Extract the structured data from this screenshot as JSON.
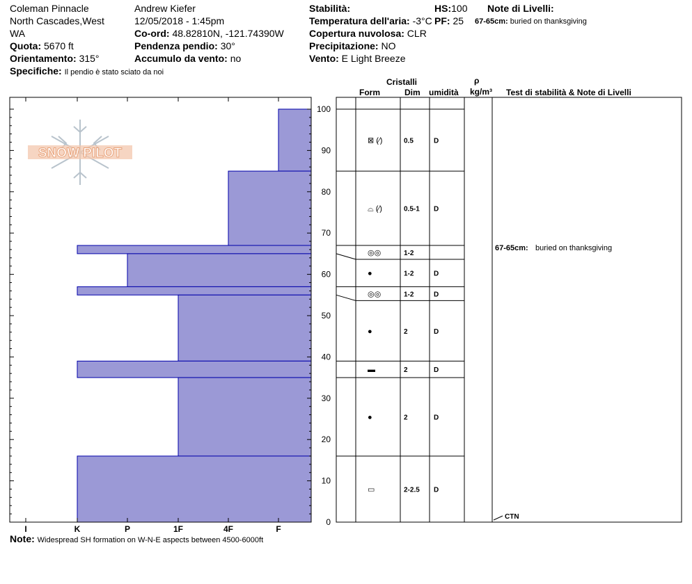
{
  "header": {
    "location": "Coleman Pinnacle",
    "region": "North Cascades,West",
    "state": "WA",
    "observer": "Andrew Kiefer",
    "datetime": "12/05/2018 - 1:45pm",
    "coord_label": "Co-ord:",
    "coord_value": "48.82810N, -121.74390W",
    "slope_label": "Pendenza pendio:",
    "slope_value": "30°",
    "elev_label": "Quota:",
    "elev_value": "5670 ft",
    "aspect_label": "Orientamento:",
    "aspect_value": "315°",
    "wind_load_label": "Accumulo da vento:",
    "wind_load_value": "no",
    "specifics_label": "Specifiche:",
    "specifics_value": "Il pendio è stato sciato da noi",
    "stability_label": "Stabilità:",
    "hs_label": "HS:",
    "hs_value": "100",
    "layer_notes_label": "Note di Livelli:",
    "air_temp_label": "Temperatura dell'aria:",
    "air_temp_value": "-3°C",
    "pf_label": "PF:",
    "pf_value": "25",
    "layer_note_depth": "67-65cm:",
    "layer_note_text": "buried on thanksgiving",
    "cloud_label": "Copertura nuvolosa:",
    "cloud_value": "CLR",
    "precip_label": "Precipitazione:",
    "precip_value": "NO",
    "wind_label": "Vento:",
    "wind_value": "E Light Breeze"
  },
  "logo": {
    "text": "SNOW PILOT"
  },
  "note": {
    "label": "Note:",
    "text": "Widespread SH formation on W-N-E aspects between 4500-6000ft"
  },
  "table": {
    "crystals_header": "Cristalli",
    "form_header": "Form",
    "dim_header": "Dim",
    "moisture_header": "umidità",
    "rho_header": "ρ",
    "density_unit_header": "kg/m³",
    "tests_header": "Test di stabilità & Note di Livelli",
    "test_result": "CTN",
    "layer_note_depth": "67-65cm:",
    "layer_note_text": "buried on thanksgiving"
  },
  "colors": {
    "hardness_fill": "#9b99d6",
    "hardness_stroke": "#0000aa",
    "logo": "#e8a27a",
    "flake": "#b8c3cc"
  },
  "chart_data": {
    "type": "bar",
    "orientation": "horizontal-step",
    "x_categories": [
      "I",
      "K",
      "P",
      "1F",
      "4F",
      "F"
    ],
    "y_ticks": [
      0,
      10,
      20,
      30,
      40,
      50,
      60,
      70,
      80,
      90,
      100
    ],
    "ylim": [
      0,
      100
    ],
    "layers": [
      {
        "top": 100,
        "bottom": 85,
        "hardness": "F",
        "form": "facets-rounding",
        "form_label": "⊠ (⁄)",
        "size": "0.5",
        "moisture": "D"
      },
      {
        "top": 85,
        "bottom": 67,
        "hardness": "4F",
        "form": "depth-hoar-rounding",
        "form_label": "⌓ (⁄)",
        "size": "0.5-1",
        "moisture": "D"
      },
      {
        "top": 67,
        "bottom": 65,
        "hardness": "K",
        "form": "melt-freeze",
        "form_label": "◎◎",
        "size": "1-2",
        "moisture": ""
      },
      {
        "top": 65,
        "bottom": 57,
        "hardness": "P",
        "form": "rounded",
        "form_label": "●",
        "size": "1-2",
        "moisture": "D"
      },
      {
        "top": 57,
        "bottom": 55,
        "hardness": "K",
        "form": "melt-freeze",
        "form_label": "◎◎",
        "size": "1-2",
        "moisture": "D"
      },
      {
        "top": 55,
        "bottom": 39,
        "hardness": "1F",
        "form": "rounded",
        "form_label": "●",
        "size": "2",
        "moisture": "D"
      },
      {
        "top": 39,
        "bottom": 35,
        "hardness": "K",
        "form": "ice",
        "form_label": "▬",
        "size": "2",
        "moisture": "D"
      },
      {
        "top": 35,
        "bottom": 16,
        "hardness": "1F",
        "form": "rounded",
        "form_label": "●",
        "size": "2",
        "moisture": "D"
      },
      {
        "top": 16,
        "bottom": 0,
        "hardness": "K",
        "form": "facets",
        "form_label": "▭",
        "size": "2-2.5",
        "moisture": "D"
      }
    ]
  }
}
